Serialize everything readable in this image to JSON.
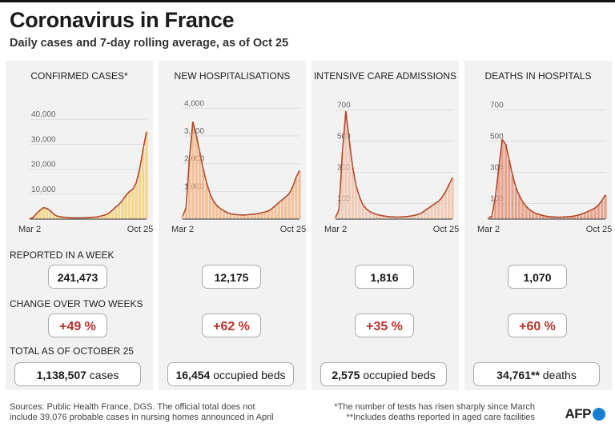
{
  "title": "Coronavirus in France",
  "subtitle": "Daily cases and 7-day rolling average, as of Oct 25",
  "row_labels": {
    "reported": "REPORTED IN A WEEK",
    "change": "CHANGE OVER TWO WEEKS",
    "total": "TOTAL AS OF OCTOBER 25"
  },
  "panels": [
    {
      "title": "CONFIRMED CASES*",
      "reported": "241,473",
      "change": "+49 %",
      "total_value": "1,138,507",
      "total_unit": "cases"
    },
    {
      "title": "NEW HOSPITALISATIONS",
      "reported": "12,175",
      "change": "+62 %",
      "total_value": "16,454",
      "total_unit": "occupied beds"
    },
    {
      "title": "INTENSIVE CARE ADMISSIONS",
      "reported": "1,816",
      "change": "+35 %",
      "total_value": "2,575",
      "total_unit": "occupied beds"
    },
    {
      "title": "DEATHS IN HOSPITALS",
      "reported": "1,070",
      "change": "+60 %",
      "total_value": "34,761**",
      "total_unit": "deaths"
    }
  ],
  "footer": {
    "sources_1": "Sources: Public Health France, DGS.  The official total does not",
    "sources_2": "include 39,076 probable cases in nursing homes announced in April",
    "note_1": "*The number of tests has risen sharply since March",
    "note_2": "**Includes deaths reported in aged care facilities",
    "logo": "AFP"
  },
  "chart_data": [
    {
      "type": "bar",
      "title": "CONFIRMED CASES*",
      "x_start": "Mar 2",
      "x_end": "Oct 25",
      "x_ticks": [
        "Mar 2",
        "Oct 25"
      ],
      "y_ticks": [
        10000,
        20000,
        30000,
        40000
      ],
      "y_tick_labels": [
        "10,000",
        "20,000",
        "30,000",
        "40,000"
      ],
      "ylim": [
        0,
        50000
      ],
      "bar_color": "#f6d27a",
      "avg_color": "#b04a2f",
      "series": [
        {
          "week_start": [
            "Mar 2",
            "Mar 9",
            "Mar 16",
            "Mar 23",
            "Mar 30",
            "Apr 6",
            "Apr 13",
            "Apr 20",
            "Apr 27",
            "May 4",
            "May 11",
            "May 18",
            "May 25",
            "Jun 1",
            "Jun 8",
            "Jun 15",
            "Jun 22",
            "Jun 29",
            "Jul 6",
            "Jul 13",
            "Jul 20",
            "Jul 27",
            "Aug 3",
            "Aug 10",
            "Aug 17",
            "Aug 24",
            "Aug 31",
            "Sep 7",
            "Sep 14",
            "Sep 21",
            "Sep 28",
            "Oct 5",
            "Oct 12",
            "Oct 19",
            "Oct 25"
          ],
          "rolling_avg": [
            100,
            700,
            2200,
            3500,
            4600,
            4300,
            3400,
            2000,
            1200,
            1000,
            700,
            600,
            500,
            500,
            450,
            500,
            550,
            600,
            700,
            800,
            1000,
            1300,
            1700,
            2400,
            3500,
            4800,
            5900,
            7500,
            9500,
            11000,
            12000,
            14500,
            20000,
            28000,
            35000
          ]
        }
      ]
    },
    {
      "type": "bar",
      "title": "NEW HOSPITALISATIONS",
      "x_start": "Mar 2",
      "x_end": "Oct 25",
      "x_ticks": [
        "Mar 2",
        "Oct 25"
      ],
      "y_ticks": [
        1000,
        2000,
        3000,
        4000
      ],
      "y_tick_labels": [
        "1,000",
        "2,000",
        "3,000",
        "4,000"
      ],
      "ylim": [
        0,
        4500
      ],
      "bar_color": "#f2b88a",
      "avg_color": "#b04a2f",
      "series": [
        {
          "week_start": [
            "Mar 2",
            "Mar 9",
            "Mar 16",
            "Mar 23",
            "Mar 30",
            "Apr 6",
            "Apr 13",
            "Apr 20",
            "Apr 27",
            "May 4",
            "May 11",
            "May 18",
            "May 25",
            "Jun 1",
            "Jun 8",
            "Jun 15",
            "Jun 22",
            "Jun 29",
            "Jul 6",
            "Jul 13",
            "Jul 20",
            "Jul 27",
            "Aug 3",
            "Aug 10",
            "Aug 17",
            "Aug 24",
            "Aug 31",
            "Sep 7",
            "Sep 14",
            "Sep 21",
            "Sep 28",
            "Oct 5",
            "Oct 12",
            "Oct 19",
            "Oct 25"
          ],
          "rolling_avg": [
            100,
            400,
            2200,
            3500,
            3000,
            2400,
            1800,
            1300,
            900,
            650,
            480,
            380,
            300,
            230,
            190,
            170,
            160,
            150,
            150,
            160,
            170,
            180,
            200,
            230,
            260,
            300,
            380,
            480,
            600,
            700,
            800,
            920,
            1150,
            1500,
            1750
          ]
        }
      ]
    },
    {
      "type": "bar",
      "title": "INTENSIVE CARE ADMISSIONS",
      "x_start": "Mar 2",
      "x_end": "Oct 25",
      "x_ticks": [
        "Mar 2",
        "Oct 25"
      ],
      "y_ticks": [
        100,
        300,
        500,
        700
      ],
      "y_tick_labels": [
        "100",
        "300",
        "500",
        "700"
      ],
      "ylim": [
        0,
        800
      ],
      "bar_color": "#f0c4ae",
      "avg_color": "#b04a2f",
      "series": [
        {
          "week_start": [
            "Mar 2",
            "Mar 9",
            "Mar 16",
            "Mar 23",
            "Mar 30",
            "Apr 6",
            "Apr 13",
            "Apr 20",
            "Apr 27",
            "May 4",
            "May 11",
            "May 18",
            "May 25",
            "Jun 1",
            "Jun 8",
            "Jun 15",
            "Jun 22",
            "Jun 29",
            "Jul 6",
            "Jul 13",
            "Jul 20",
            "Jul 27",
            "Aug 3",
            "Aug 10",
            "Aug 17",
            "Aug 24",
            "Aug 31",
            "Sep 7",
            "Sep 14",
            "Sep 21",
            "Sep 28",
            "Oct 5",
            "Oct 12",
            "Oct 19",
            "Oct 25"
          ],
          "rolling_avg": [
            10,
            60,
            430,
            690,
            500,
            330,
            210,
            140,
            90,
            65,
            48,
            38,
            30,
            24,
            20,
            17,
            15,
            14,
            13,
            14,
            15,
            17,
            20,
            24,
            30,
            40,
            55,
            70,
            85,
            100,
            115,
            140,
            175,
            220,
            265
          ]
        }
      ]
    },
    {
      "type": "bar",
      "title": "DEATHS IN HOSPITALS",
      "x_start": "Mar 2",
      "x_end": "Oct 25",
      "x_ticks": [
        "Mar 2",
        "Oct 25"
      ],
      "y_ticks": [
        100,
        300,
        500,
        700
      ],
      "y_tick_labels": [
        "100",
        "300",
        "500",
        "700"
      ],
      "ylim": [
        0,
        800
      ],
      "bar_color": "#e8957a",
      "avg_color": "#b04a2f",
      "series": [
        {
          "week_start": [
            "Mar 2",
            "Mar 9",
            "Mar 16",
            "Mar 23",
            "Mar 30",
            "Apr 6",
            "Apr 13",
            "Apr 20",
            "Apr 27",
            "May 4",
            "May 11",
            "May 18",
            "May 25",
            "Jun 1",
            "Jun 8",
            "Jun 15",
            "Jun 22",
            "Jun 29",
            "Jul 6",
            "Jul 13",
            "Jul 20",
            "Jul 27",
            "Aug 3",
            "Aug 10",
            "Aug 17",
            "Aug 24",
            "Aug 31",
            "Sep 7",
            "Sep 14",
            "Sep 21",
            "Sep 28",
            "Oct 5",
            "Oct 12",
            "Oct 19",
            "Oct 25"
          ],
          "rolling_avg": [
            5,
            20,
            140,
            330,
            510,
            480,
            380,
            280,
            200,
            150,
            110,
            80,
            60,
            45,
            35,
            28,
            22,
            18,
            15,
            14,
            13,
            13,
            14,
            15,
            17,
            20,
            25,
            32,
            40,
            50,
            60,
            72,
            90,
            120,
            155
          ]
        }
      ]
    }
  ]
}
